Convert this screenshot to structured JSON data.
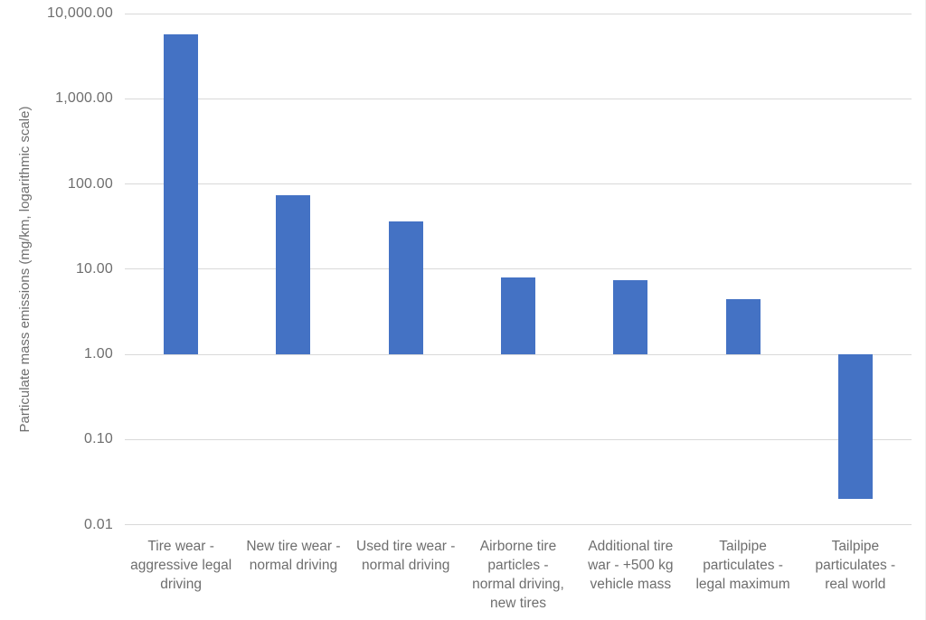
{
  "chart_data": {
    "type": "bar",
    "title": "",
    "xlabel": "",
    "ylabel": "Particulate mass emissions (mg/km, logarithmic scale)",
    "scale": "logarithmic",
    "ylim": [
      0.01,
      10000
    ],
    "axis_crossing": 1,
    "grid": true,
    "legend_position": "none",
    "yticks": [
      {
        "value": 10000,
        "label": "10,000.00"
      },
      {
        "value": 1000,
        "label": "1,000.00"
      },
      {
        "value": 100,
        "label": "100.00"
      },
      {
        "value": 10,
        "label": "10.00"
      },
      {
        "value": 1,
        "label": "1.00"
      },
      {
        "value": 0.1,
        "label": "0.10"
      },
      {
        "value": 0.01,
        "label": "0.01"
      }
    ],
    "categories": [
      {
        "label": "Tire wear - aggressive legal driving",
        "lines": [
          "Tire wear -",
          "aggressive legal",
          "driving"
        ]
      },
      {
        "label": "New tire wear - normal driving",
        "lines": [
          "New tire wear -",
          "normal driving"
        ]
      },
      {
        "label": "Used tire wear - normal driving",
        "lines": [
          "Used tire wear -",
          "normal driving"
        ]
      },
      {
        "label": "Airborne tire particles - normal driving, new tires",
        "lines": [
          "Airborne tire",
          "particles -",
          "normal driving,",
          "new tires"
        ]
      },
      {
        "label": "Additional tire war - +500 kg vehicle mass",
        "lines": [
          "Additional tire",
          "war - +500 kg",
          "vehicle mass"
        ]
      },
      {
        "label": "Tailpipe particulates - legal maximum",
        "lines": [
          "Tailpipe",
          "particulates -",
          "legal maximum"
        ]
      },
      {
        "label": "Tailpipe particulates - real world",
        "lines": [
          "Tailpipe",
          "particulates -",
          "real world"
        ]
      }
    ],
    "values": [
      5760,
      73,
      36,
      8,
      7.5,
      4.5,
      0.02
    ],
    "colors": {
      "bar": "#4472C4",
      "gridline": "#D9D9D9",
      "axis_text": "#6E6E6E"
    }
  }
}
